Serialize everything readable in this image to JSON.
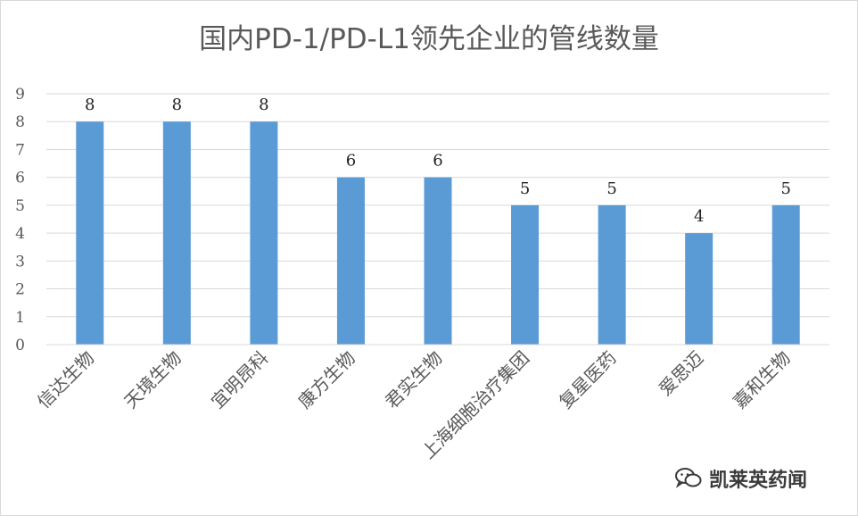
{
  "chart_data": {
    "type": "bar",
    "title": "国内PD-1/PD-L1领先企业的管线数量",
    "categories": [
      "信达生物",
      "天境生物",
      "宜明昂科",
      "康方生物",
      "君实生物",
      "上海细胞治疗集团",
      "复星医药",
      "爱思迈",
      "嘉和生物"
    ],
    "values": [
      8,
      8,
      8,
      6,
      6,
      5,
      5,
      4,
      5
    ],
    "ylim": [
      0,
      9
    ],
    "yticks": [
      0,
      1,
      2,
      3,
      4,
      5,
      6,
      7,
      8,
      9
    ],
    "grid": true,
    "bar_color": "#5b9bd5",
    "xlabel": "",
    "ylabel": ""
  },
  "watermark": {
    "icon": "wechat-icon",
    "text": "凯莱英药闻"
  }
}
